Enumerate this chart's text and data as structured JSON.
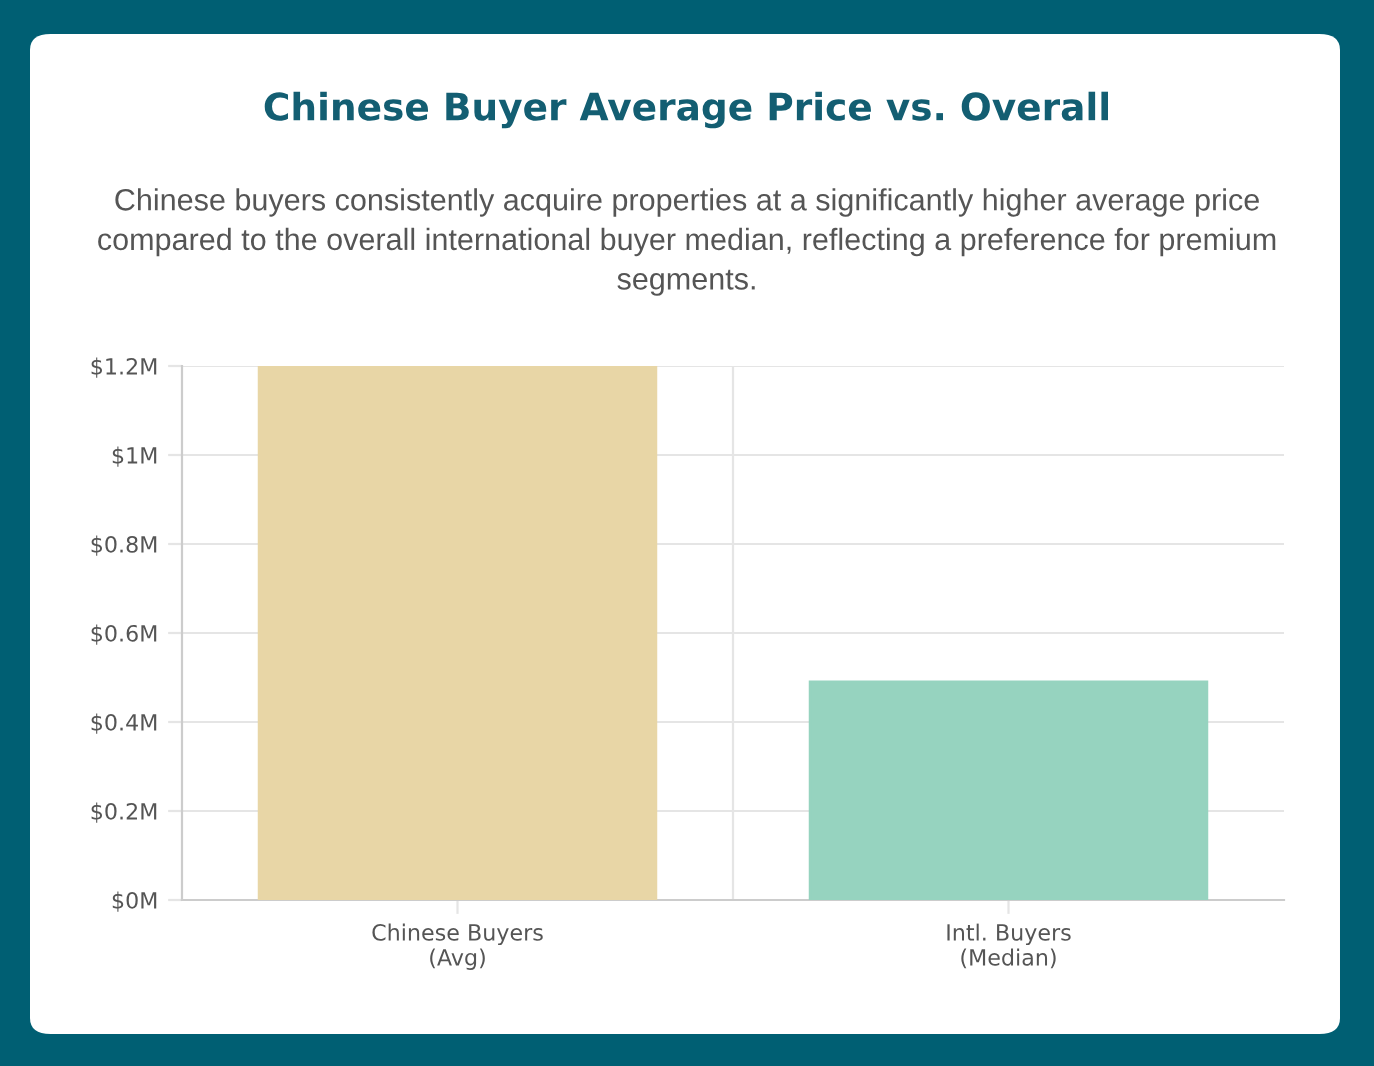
{
  "chart_data": {
    "type": "bar",
    "title": "Chinese Buyer Average Price vs. Overall",
    "subtitle": "Chinese buyers consistently acquire properties at a significantly higher average price compared to the overall international buyer median, reflecting a preference for premium segments.",
    "categories": [
      "Chinese Buyers\n(Avg)",
      "Intl. Buyers\n(Median)"
    ],
    "values": [
      1.2,
      0.49
    ],
    "colors": [
      "#e8d6a6",
      "#96d3bf"
    ],
    "ylim": [
      0,
      1.2
    ],
    "yticks": [
      {
        "value": 0,
        "label": "$0M"
      },
      {
        "value": 0.2,
        "label": "$0.2M"
      },
      {
        "value": 0.4,
        "label": "$0.4M"
      },
      {
        "value": 0.6,
        "label": "$0.6M"
      },
      {
        "value": 0.8,
        "label": "$0.8M"
      },
      {
        "value": 1,
        "label": "$1M"
      },
      {
        "value": 1.2,
        "label": "$1.2M"
      }
    ],
    "grid": true,
    "legend": false
  }
}
